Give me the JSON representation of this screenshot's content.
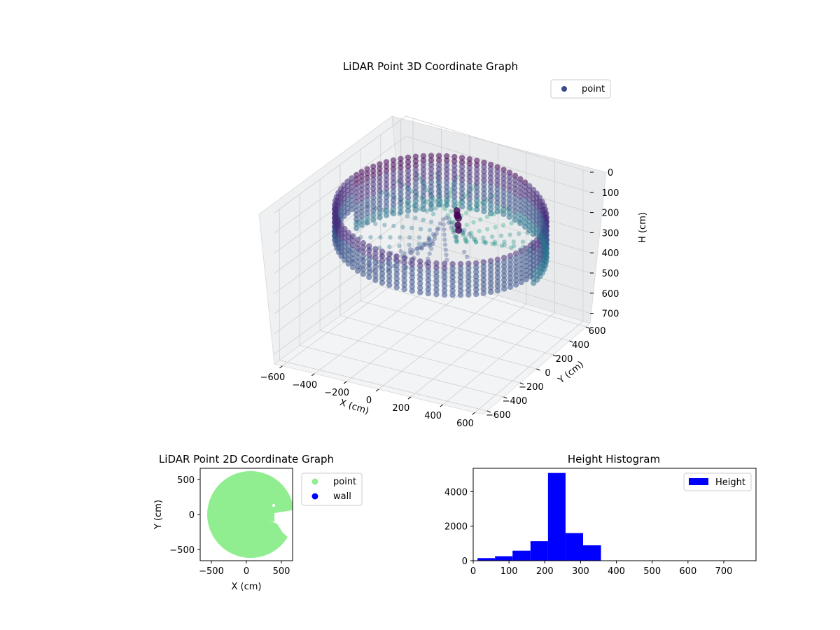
{
  "chart_data": [
    {
      "type": "scatter",
      "projection": "3d",
      "title": "LiDAR Point 3D Coordinate Graph",
      "xlabel": "X (cm)",
      "ylabel": "Y (cm)",
      "zlabel": "H (cm)",
      "x_ticks": [
        "−600",
        "−400",
        "−200",
        "0",
        "200",
        "400",
        "600"
      ],
      "y_ticks": [
        "−600",
        "−400",
        "−200",
        "0",
        "200",
        "400",
        "600"
      ],
      "z_ticks": [
        "0",
        "100",
        "200",
        "300",
        "400",
        "500",
        "600",
        "700"
      ],
      "xlim": [
        -650,
        650
      ],
      "ylim": [
        -650,
        650
      ],
      "zlim": [
        0,
        750
      ],
      "z_inverted": true,
      "grid": true,
      "legend": {
        "placement": "top-right",
        "entries": [
          {
            "label": "point",
            "color": "#3b4a8c"
          }
        ]
      },
      "colormap": "viridis",
      "series": [
        {
          "name": "point",
          "description_points": [
            {
              "x": -470,
              "y": 450,
              "h": 120
            },
            {
              "x": -200,
              "y": 520,
              "h": 110
            },
            {
              "x": 100,
              "y": 560,
              "h": 110
            },
            {
              "x": 400,
              "y": 480,
              "h": 130
            },
            {
              "x": 560,
              "y": 250,
              "h": 150
            },
            {
              "x": 600,
              "y": 0,
              "h": 160
            },
            {
              "x": 580,
              "y": -250,
              "h": 170
            },
            {
              "x": 450,
              "y": -450,
              "h": 200
            },
            {
              "x": 200,
              "y": -560,
              "h": 230
            },
            {
              "x": -100,
              "y": -580,
              "h": 240
            },
            {
              "x": -400,
              "y": -450,
              "h": 240
            },
            {
              "x": -580,
              "y": -150,
              "h": 220
            },
            {
              "x": -600,
              "y": 150,
              "h": 180
            },
            {
              "x": 50,
              "y": 100,
              "h": 200
            },
            {
              "x": -150,
              "y": -100,
              "h": 230
            },
            {
              "x": 250,
              "y": -100,
              "h": 220
            },
            {
              "x": 100,
              "y": 300,
              "h": 200
            },
            {
              "x": -300,
              "y": 200,
              "h": 220
            }
          ]
        }
      ]
    },
    {
      "type": "scatter",
      "title": "LiDAR Point 2D Coordinate Graph",
      "xlabel": "X (cm)",
      "ylabel": "Y (cm)",
      "x_ticks": [
        -500,
        0,
        500
      ],
      "y_ticks": [
        -500,
        0,
        500
      ],
      "xlim": [
        -660,
        660
      ],
      "ylim": [
        -660,
        660
      ],
      "legend": {
        "placement": "outside-right",
        "entries": [
          {
            "label": "point",
            "color": "#90ee90"
          },
          {
            "label": "wall",
            "color": "#0000ff"
          }
        ]
      },
      "series": [
        {
          "name": "point",
          "color": "#90ee90",
          "shape": "filled disc of radius ~620 cm centred near (60, 0) with notch on the right side"
        },
        {
          "name": "wall",
          "color": "#0000ff",
          "values": []
        }
      ]
    },
    {
      "type": "bar",
      "title": "Height Histogram",
      "xlabel": "",
      "ylabel": "",
      "x_ticks": [
        0,
        100,
        200,
        300,
        400,
        500,
        600,
        700
      ],
      "y_ticks": [
        0,
        2000,
        4000
      ],
      "xlim": [
        0,
        790
      ],
      "ylim": [
        0,
        5350
      ],
      "legend": {
        "placement": "top-right",
        "entries": [
          {
            "label": "Height",
            "color": "#0000ff"
          }
        ]
      },
      "bins": [
        {
          "x0": 12,
          "x1": 61,
          "count": 150
        },
        {
          "x0": 61,
          "x1": 110,
          "count": 260
        },
        {
          "x0": 110,
          "x1": 160,
          "count": 580
        },
        {
          "x0": 160,
          "x1": 209,
          "count": 1130
        },
        {
          "x0": 209,
          "x1": 258,
          "count": 5080
        },
        {
          "x0": 258,
          "x1": 307,
          "count": 1600
        },
        {
          "x0": 307,
          "x1": 357,
          "count": 890
        },
        {
          "x0": 357,
          "x1": 406,
          "count": 0
        },
        {
          "x0": 406,
          "x1": 455,
          "count": 0
        },
        {
          "x0": 455,
          "x1": 504,
          "count": 0
        },
        {
          "x0": 504,
          "x1": 554,
          "count": 0
        },
        {
          "x0": 554,
          "x1": 603,
          "count": 0
        },
        {
          "x0": 603,
          "x1": 652,
          "count": 0
        },
        {
          "x0": 652,
          "x1": 701,
          "count": 0
        },
        {
          "x0": 701,
          "x1": 750,
          "count": 0
        }
      ],
      "color": "#0000ff"
    }
  ]
}
